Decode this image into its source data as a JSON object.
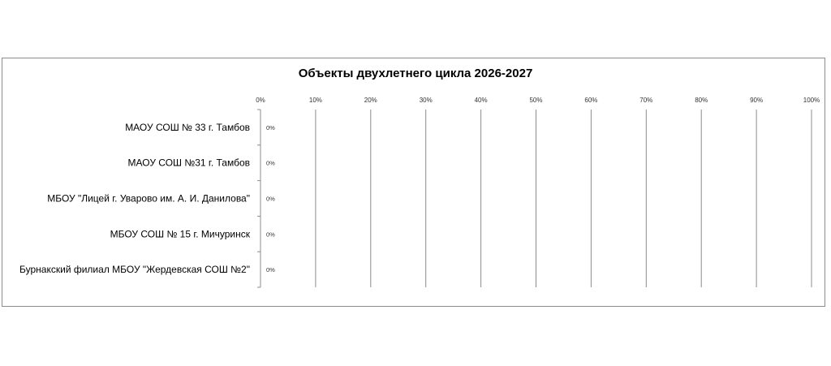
{
  "chart_data": {
    "type": "bar",
    "orientation": "horizontal",
    "title": "Объекты двухлетнего цикла 2026-2027",
    "categories": [
      "МАОУ СОШ № 33 г. Тамбов",
      "МАОУ СОШ №31 г. Тамбов",
      "МБОУ \"Лицей г. Уварово им. А. И. Данилова\"",
      "МБОУ СОШ № 15 г. Мичуринск",
      "Бурнакский филиал МБОУ \"Жердевская СОШ №2\""
    ],
    "values": [
      0,
      0,
      0,
      0,
      0
    ],
    "data_labels": [
      "0%",
      "0%",
      "0%",
      "0%",
      "0%"
    ],
    "xlim": [
      0,
      100
    ],
    "x_ticks": [
      "0%",
      "10%",
      "20%",
      "30%",
      "40%",
      "50%",
      "60%",
      "70%",
      "80%",
      "90%",
      "100%"
    ],
    "x_axis_position": "top",
    "grid": true,
    "gridline_color": "#8c8c8c",
    "legend": "none"
  }
}
